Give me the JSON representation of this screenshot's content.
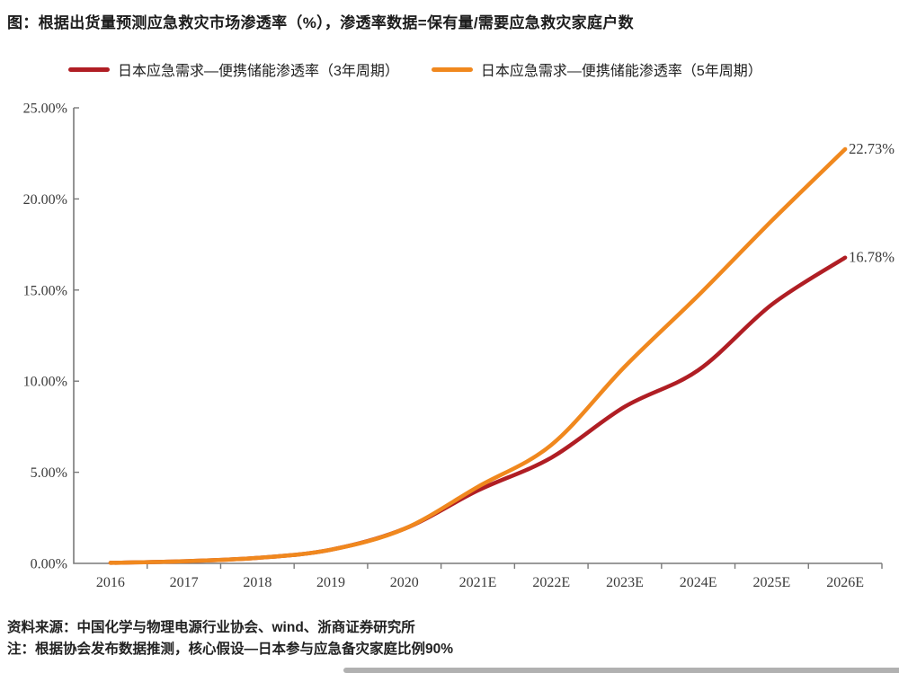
{
  "title": "图：根据出货量预测应急救灾市场渗透率（%），渗透率数据=保有量/需要应急救灾家庭户数",
  "legend": {
    "items": [
      {
        "label": "日本应急需求—便携储能渗透率（3年周期）",
        "color": "#B01E24"
      },
      {
        "label": "日本应急需求—便携储能渗透率（5年周期）",
        "color": "#F0881E"
      }
    ]
  },
  "chart_data": {
    "type": "line",
    "categories": [
      "2016",
      "2017",
      "2018",
      "2019",
      "2020",
      "2021E",
      "2022E",
      "2023E",
      "2024E",
      "2025E",
      "2026E"
    ],
    "series": [
      {
        "name": "日本应急需求—便携储能渗透率（3年周期）",
        "color": "#B01E24",
        "values": [
          0.03,
          0.12,
          0.3,
          0.75,
          1.9,
          4.0,
          5.8,
          8.6,
          10.6,
          14.2,
          16.78
        ],
        "end_label": "16.78%"
      },
      {
        "name": "日本应急需求—便携储能渗透率（5年周期）",
        "color": "#F0881E",
        "values": [
          0.03,
          0.12,
          0.3,
          0.75,
          1.9,
          4.2,
          6.5,
          10.8,
          14.7,
          18.8,
          22.73
        ],
        "end_label": "22.73%"
      }
    ],
    "ylim": [
      0,
      25
    ],
    "ytick_labels": [
      "0.00%",
      "5.00%",
      "10.00%",
      "15.00%",
      "20.00%",
      "25.00%"
    ],
    "grid": false,
    "legend_position": "top",
    "axis_color": "#7a7a7a",
    "tick_text_color": "#3b3b3b"
  },
  "footer": {
    "source": "资料来源：中国化学与物理电源行业协会、wind、浙商证券研究所",
    "note": "注：根据协会发布数据推测，核心假设—日本参与应急备灾家庭比例90%"
  }
}
